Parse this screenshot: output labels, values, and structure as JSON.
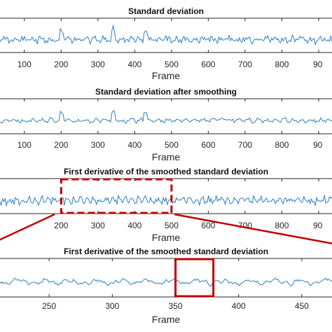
{
  "chart_data": [
    {
      "type": "line",
      "title": "Standard deviation",
      "xlabel": "Frame",
      "xticks": [
        "100",
        "200",
        "300",
        "400",
        "500",
        "600",
        "700",
        "800",
        "90"
      ],
      "xlim": [
        30,
        940
      ],
      "ylim": [
        -1,
        1
      ],
      "grid": false,
      "series": [
        {
          "color": "#2f7fbf",
          "spike_frames": [
            200,
            340,
            430
          ]
        }
      ]
    },
    {
      "type": "line",
      "title": "Standard deviation after smoothing",
      "xlabel": "Frame",
      "xticks": [
        "100",
        "200",
        "300",
        "400",
        "500",
        "600",
        "700",
        "800",
        "90"
      ],
      "xlim": [
        30,
        940
      ],
      "ylim": [
        -1,
        1
      ],
      "grid": false,
      "series": [
        {
          "color": "#2f7fbf",
          "spike_frames": [
            200,
            340,
            430
          ]
        }
      ]
    },
    {
      "type": "line",
      "title": "First derivative of the smoothed standard deviation",
      "xlabel": "Frame",
      "xticks": [
        "200",
        "300",
        "400",
        "500",
        "600",
        "700",
        "800",
        "90"
      ],
      "xlim": [
        30,
        940
      ],
      "ylim": [
        -1,
        1
      ],
      "grid": false,
      "series": [
        {
          "color": "#2f7fbf",
          "spike_frames": []
        }
      ],
      "highlight_range": [
        200,
        500
      ],
      "highlight_color": "#c00000"
    },
    {
      "type": "line",
      "title": "First derivative of the smoothed standard deviation",
      "xlabel": "Frame",
      "xticks": [
        "250",
        "300",
        "350",
        "400",
        "450"
      ],
      "xlim": [
        210,
        475
      ],
      "ylim": [
        -1,
        1
      ],
      "grid": false,
      "series": [
        {
          "color": "#2f7fbf",
          "spike_frames": []
        }
      ],
      "highlight_range": [
        350,
        380
      ],
      "highlight_color": "#c00000"
    }
  ]
}
